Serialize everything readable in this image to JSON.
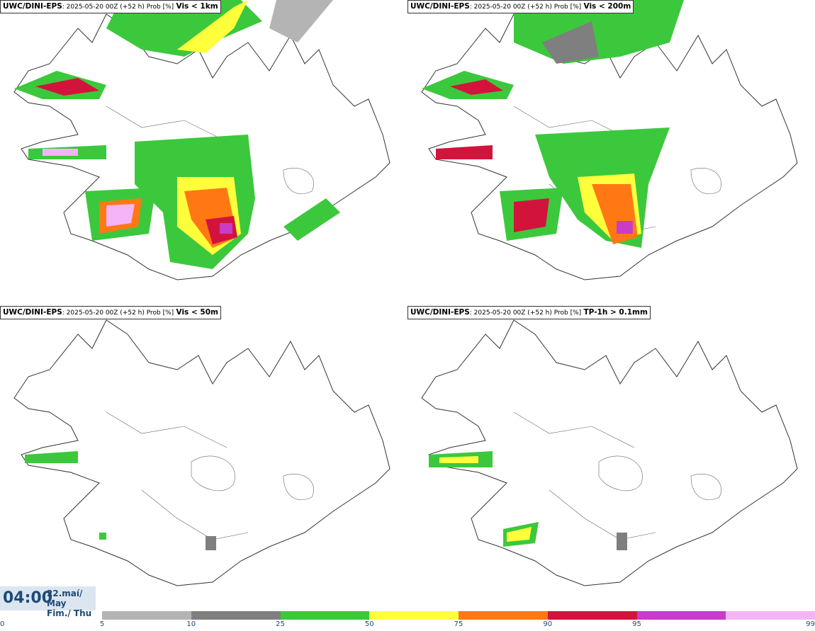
{
  "panels": [
    {
      "source": "UWC/DINI-EPS",
      "meta": ": 2025-05-20 00Z (+52 h) Prob [%]",
      "variable": "Vis < 1km"
    },
    {
      "source": "UWC/DINI-EPS",
      "meta": ": 2025-05-20 00Z (+52 h) Prob [%]",
      "variable": "Vis < 200m"
    },
    {
      "source": "UWC/DINI-EPS",
      "meta": ": 2025-05-20 00Z (+52 h) Prob [%]",
      "variable": "Vis < 50m"
    },
    {
      "source": "UWC/DINI-EPS",
      "meta": ": 2025-05-20 00Z (+52 h) Prob [%]",
      "variable": "TP-1h > 0.1mm"
    }
  ],
  "valid_time": {
    "clock": "04:00",
    "date_line1": "22.maí/ May",
    "date_line2": "Fim./ Thu"
  },
  "colorbar": {
    "ticks": [
      "0",
      "5",
      "10",
      "25",
      "50",
      "75",
      "90",
      "95",
      "99"
    ],
    "colors": [
      "#b4b4b4",
      "#7f7f7f",
      "#3cc83c",
      "#ffff3c",
      "#ff7814",
      "#d2143c",
      "#c83cc8",
      "#f5b4f5"
    ]
  }
}
